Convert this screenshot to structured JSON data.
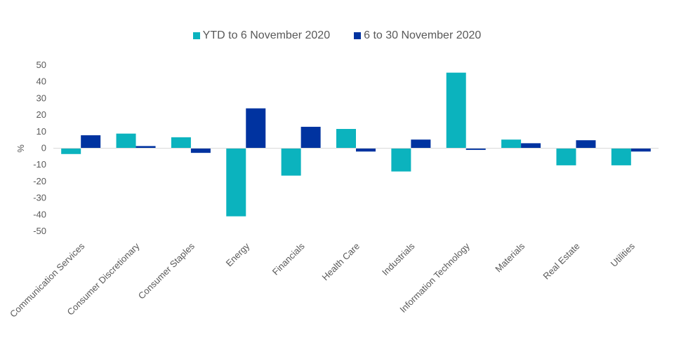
{
  "chart_data": {
    "type": "bar",
    "title": "",
    "xlabel": "",
    "ylabel": "%",
    "ylim": [
      -50,
      50
    ],
    "yticks": [
      50,
      40,
      30,
      20,
      10,
      0,
      -10,
      -20,
      -30,
      -40,
      -50
    ],
    "grid": false,
    "legend_position": "top-center",
    "categories": [
      "Communication Services",
      "Consumer Discretionary",
      "Consumer Staples",
      "Energy",
      "Financials",
      "Health Care",
      "Industrials",
      "Information Technology",
      "Materials",
      "Real Estate",
      "Utilities"
    ],
    "series": [
      {
        "name": "YTD to 6 November 2020",
        "color": "#0BB3BE",
        "values": [
          -3.5,
          8.8,
          6.6,
          -41.0,
          -16.5,
          11.6,
          -14.0,
          45.5,
          5.2,
          -10.3,
          -10.3
        ]
      },
      {
        "name": "6 to 30 November 2020",
        "color": "#0033A0",
        "values": [
          7.8,
          1.3,
          -2.8,
          24.0,
          12.9,
          -2.0,
          5.2,
          -1.0,
          3.0,
          4.8,
          -2.0
        ]
      }
    ]
  }
}
